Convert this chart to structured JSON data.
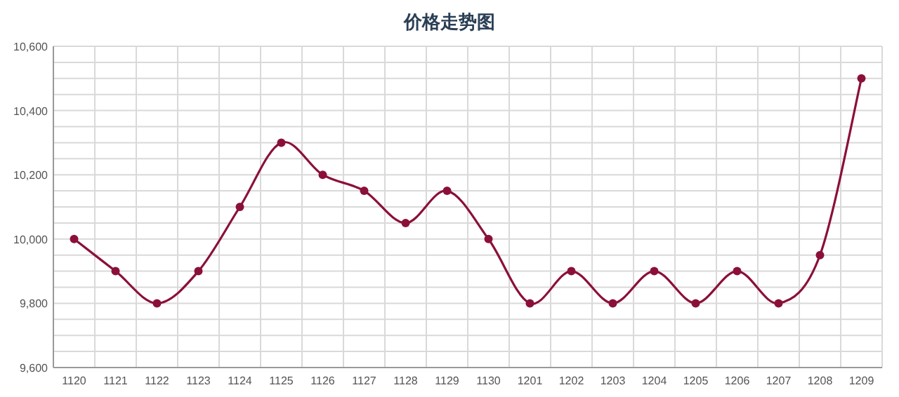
{
  "chart_data": {
    "type": "line",
    "title": "价格走势图",
    "categories": [
      "1120",
      "1121",
      "1122",
      "1123",
      "1124",
      "1125",
      "1126",
      "1127",
      "1128",
      "1129",
      "1130",
      "1201",
      "1202",
      "1203",
      "1204",
      "1205",
      "1206",
      "1207",
      "1208",
      "1209"
    ],
    "series": [
      {
        "color": "#8b1038",
        "values": [
          10000,
          9900,
          9800,
          9900,
          10100,
          10300,
          10200,
          10150,
          10050,
          10150,
          10000,
          9800,
          9900,
          9800,
          9900,
          9800,
          9900,
          9800,
          9950,
          10500
        ]
      }
    ],
    "ylim": [
      9600,
      10600
    ],
    "yticks": [
      {
        "value": 9600,
        "label": "9,600"
      },
      {
        "value": 9650,
        "label": null
      },
      {
        "value": 9700,
        "label": null
      },
      {
        "value": 9750,
        "label": null
      },
      {
        "value": 9800,
        "label": "9,800"
      },
      {
        "value": 9850,
        "label": null
      },
      {
        "value": 9900,
        "label": null
      },
      {
        "value": 9950,
        "label": null
      },
      {
        "value": 10000,
        "label": "10,000"
      },
      {
        "value": 10050,
        "label": null
      },
      {
        "value": 10100,
        "label": null
      },
      {
        "value": 10150,
        "label": null
      },
      {
        "value": 10200,
        "label": "10,200"
      },
      {
        "value": 10250,
        "label": null
      },
      {
        "value": 10300,
        "label": null
      },
      {
        "value": 10350,
        "label": null
      },
      {
        "value": 10400,
        "label": "10,400"
      },
      {
        "value": 10450,
        "label": null
      },
      {
        "value": 10500,
        "label": null
      },
      {
        "value": 10550,
        "label": null
      },
      {
        "value": 10600,
        "label": "10,600"
      }
    ],
    "grid": true,
    "marker": "circle"
  }
}
